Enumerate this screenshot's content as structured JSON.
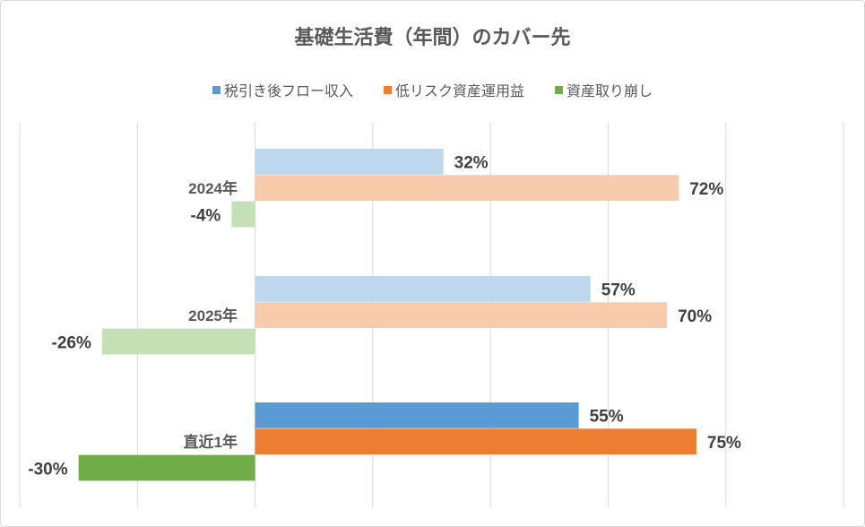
{
  "chart_data": {
    "type": "bar",
    "orientation": "horizontal",
    "title": "基礎生活費（年間）のカバー先",
    "categories": [
      "2024年",
      "2025年",
      "直近1年"
    ],
    "series": [
      {
        "name": "税引き後フロー収入",
        "values": [
          32,
          57,
          55
        ],
        "color": "#5B9BD5",
        "light_color": "#BDD7EE"
      },
      {
        "name": "低リスク資産運用益",
        "values": [
          72,
          70,
          75
        ],
        "color": "#ED7D31",
        "light_color": "#F8CBAD"
      },
      {
        "name": "資産取り崩し",
        "values": [
          -4,
          -26,
          -30
        ],
        "color": "#70AD47",
        "light_color": "#C5E0B4"
      }
    ],
    "highlighted_category": "直近1年",
    "value_format": "percent",
    "xlim": [
      -40,
      100
    ],
    "gridline_step": 20,
    "grid": true,
    "legend_position": "top"
  }
}
